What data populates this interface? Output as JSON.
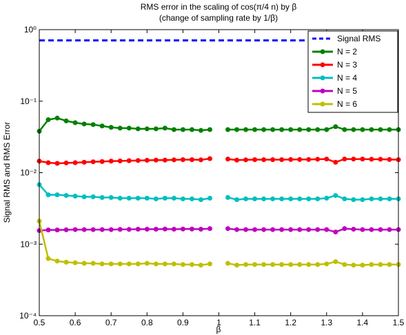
{
  "chart_data": {
    "type": "line",
    "title": "RMS error in the scaling of cos(π/4 n) by β",
    "subtitle": "(change of sampling rate by 1/β)",
    "x_label": "β",
    "y_label": "Signal RMS and RMS Error",
    "y_scale": "log",
    "legend": "upper right",
    "xlim": [
      0.5,
      1.5
    ],
    "xticks": [
      0.5,
      0.6,
      0.7,
      0.8,
      0.9,
      1,
      1.1,
      1.2,
      1.3,
      1.4,
      1.5
    ],
    "ylim": [
      0.0001,
      1
    ],
    "yticks": [
      {
        "value": 0.0001,
        "label": "10⁻⁴"
      },
      {
        "value": 0.001,
        "label": "10⁻³"
      },
      {
        "value": 0.01,
        "label": "10⁻²"
      },
      {
        "value": 0.1,
        "label": "10⁻¹"
      },
      {
        "value": 1,
        "label": "10⁰"
      }
    ],
    "x": [
      0.5,
      0.525,
      0.55,
      0.575,
      0.6,
      0.625,
      0.65,
      0.675,
      0.7,
      0.725,
      0.75,
      0.775,
      0.8,
      0.825,
      0.85,
      0.875,
      0.9,
      0.925,
      0.95,
      0.975,
      1.0,
      1.025,
      1.05,
      1.075,
      1.1,
      1.125,
      1.15,
      1.175,
      1.2,
      1.225,
      1.25,
      1.275,
      1.3,
      1.325,
      1.35,
      1.375,
      1.4,
      1.425,
      1.45,
      1.475,
      1.5
    ],
    "series": [
      {
        "name": "Signal RMS",
        "color": "#0000ff",
        "linestyle": "dashed",
        "marker": false,
        "values": [
          0.707,
          0.707,
          0.707,
          0.707,
          0.707,
          0.707,
          0.707,
          0.707,
          0.707,
          0.707,
          0.707,
          0.707,
          0.707,
          0.707,
          0.707,
          0.707,
          0.707,
          0.707,
          0.707,
          0.707,
          0.707,
          0.707,
          0.707,
          0.707,
          0.707,
          0.707,
          0.707,
          0.707,
          0.707,
          0.707,
          0.707,
          0.707,
          0.707,
          0.707,
          0.707,
          0.707,
          0.707,
          0.707,
          0.707,
          0.707,
          0.707
        ]
      },
      {
        "name": "N = 2",
        "color": "#008000",
        "linestyle": "solid",
        "marker": true,
        "values": [
          0.038,
          0.055,
          0.058,
          0.053,
          0.05,
          0.048,
          0.047,
          0.045,
          0.043,
          0.042,
          0.042,
          0.041,
          0.041,
          0.041,
          0.042,
          0.04,
          0.04,
          0.04,
          0.039,
          0.04,
          null,
          0.04,
          0.04,
          0.04,
          0.04,
          0.04,
          0.04,
          0.04,
          0.04,
          0.04,
          0.04,
          0.04,
          0.04,
          0.044,
          0.04,
          0.04,
          0.04,
          0.04,
          0.04,
          0.04,
          0.04
        ]
      },
      {
        "name": "N = 3",
        "color": "#ff0000",
        "linestyle": "solid",
        "marker": true,
        "values": [
          0.0145,
          0.0138,
          0.0135,
          0.0137,
          0.0138,
          0.014,
          0.0142,
          0.0143,
          0.0145,
          0.0146,
          0.0147,
          0.0148,
          0.0149,
          0.015,
          0.015,
          0.0151,
          0.0152,
          0.0152,
          0.0151,
          0.0157,
          null,
          0.0155,
          0.015,
          0.0151,
          0.0152,
          0.0152,
          0.0152,
          0.0152,
          0.0153,
          0.0153,
          0.0153,
          0.0154,
          0.0155,
          0.014,
          0.0155,
          0.0155,
          0.0155,
          0.0154,
          0.0154,
          0.0153,
          0.0152
        ]
      },
      {
        "name": "N = 4",
        "color": "#00bfbf",
        "linestyle": "solid",
        "marker": true,
        "values": [
          0.0068,
          0.0049,
          0.0049,
          0.0048,
          0.0047,
          0.0046,
          0.0046,
          0.0045,
          0.0045,
          0.0044,
          0.0044,
          0.0044,
          0.0044,
          0.0043,
          0.0044,
          0.0044,
          0.0043,
          0.0043,
          0.0042,
          0.0044,
          null,
          0.0045,
          0.0042,
          0.0043,
          0.0043,
          0.0043,
          0.0043,
          0.0043,
          0.0043,
          0.0043,
          0.0043,
          0.0043,
          0.0044,
          0.0048,
          0.0043,
          0.0042,
          0.0042,
          0.0043,
          0.0043,
          0.0043,
          0.0043
        ]
      },
      {
        "name": "N = 5",
        "color": "#bf00bf",
        "linestyle": "solid",
        "marker": true,
        "values": [
          0.00155,
          0.00158,
          0.00158,
          0.00159,
          0.0016,
          0.0016,
          0.0016,
          0.0016,
          0.0016,
          0.00161,
          0.00161,
          0.00162,
          0.00162,
          0.00162,
          0.00163,
          0.00162,
          0.00163,
          0.00163,
          0.00162,
          0.00165,
          null,
          0.00165,
          0.0016,
          0.0016,
          0.0016,
          0.0016,
          0.0016,
          0.0016,
          0.0016,
          0.0016,
          0.0016,
          0.0016,
          0.0016,
          0.00148,
          0.00165,
          0.00162,
          0.0016,
          0.0016,
          0.0016,
          0.0016,
          0.0016
        ]
      },
      {
        "name": "N = 6",
        "color": "#bfbf00",
        "linestyle": "solid",
        "marker": true,
        "values": [
          0.0021,
          0.00063,
          0.00058,
          0.00056,
          0.00055,
          0.00054,
          0.00054,
          0.00053,
          0.00053,
          0.00053,
          0.00053,
          0.00053,
          0.00054,
          0.00053,
          0.00053,
          0.00053,
          0.00052,
          0.00052,
          0.00051,
          0.00053,
          null,
          0.00054,
          0.00051,
          0.00052,
          0.00052,
          0.00052,
          0.00052,
          0.00052,
          0.00052,
          0.00052,
          0.00052,
          0.00052,
          0.00053,
          0.00057,
          0.00052,
          0.00051,
          0.00051,
          0.00052,
          0.00052,
          0.00052,
          0.00052
        ]
      }
    ]
  }
}
